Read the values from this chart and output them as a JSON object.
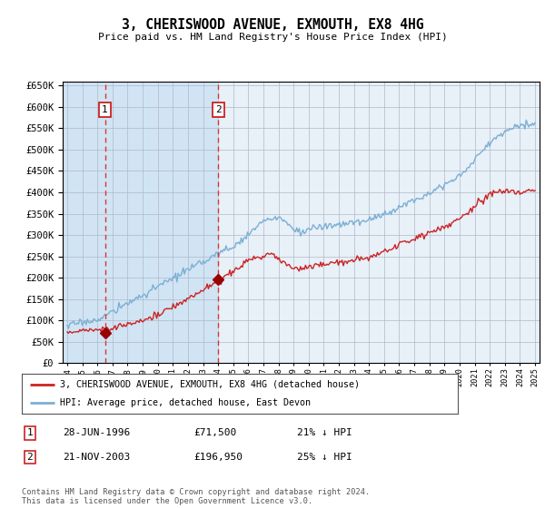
{
  "title": "3, CHERISWOOD AVENUE, EXMOUTH, EX8 4HG",
  "subtitle": "Price paid vs. HM Land Registry's House Price Index (HPI)",
  "legend_line1": "3, CHERISWOOD AVENUE, EXMOUTH, EX8 4HG (detached house)",
  "legend_line2": "HPI: Average price, detached house, East Devon",
  "footer": "Contains HM Land Registry data © Crown copyright and database right 2024.\nThis data is licensed under the Open Government Licence v3.0.",
  "sale1_date": "28-JUN-1996",
  "sale1_price": "£71,500",
  "sale1_hpi": "21% ↓ HPI",
  "sale2_date": "21-NOV-2003",
  "sale2_price": "£196,950",
  "sale2_hpi": "25% ↓ HPI",
  "sale1_year": 1996.5,
  "sale1_value": 71500,
  "sale2_year": 2004.0,
  "sale2_value": 196950,
  "ylim_min": 0,
  "ylim_max": 660000,
  "xlim_min": 1993.7,
  "xlim_max": 2025.3,
  "shade_end_year": 2004.0,
  "plot_bg_color": "#e8f0f8",
  "shade_color": "#d0e4f4",
  "grid_color": "#b0b8c8",
  "red_line_color": "#cc2222",
  "blue_line_color": "#7bafd4",
  "sale_dot_color": "#990000",
  "dashed_line_color": "#dd3333",
  "white_bg": "#ffffff"
}
